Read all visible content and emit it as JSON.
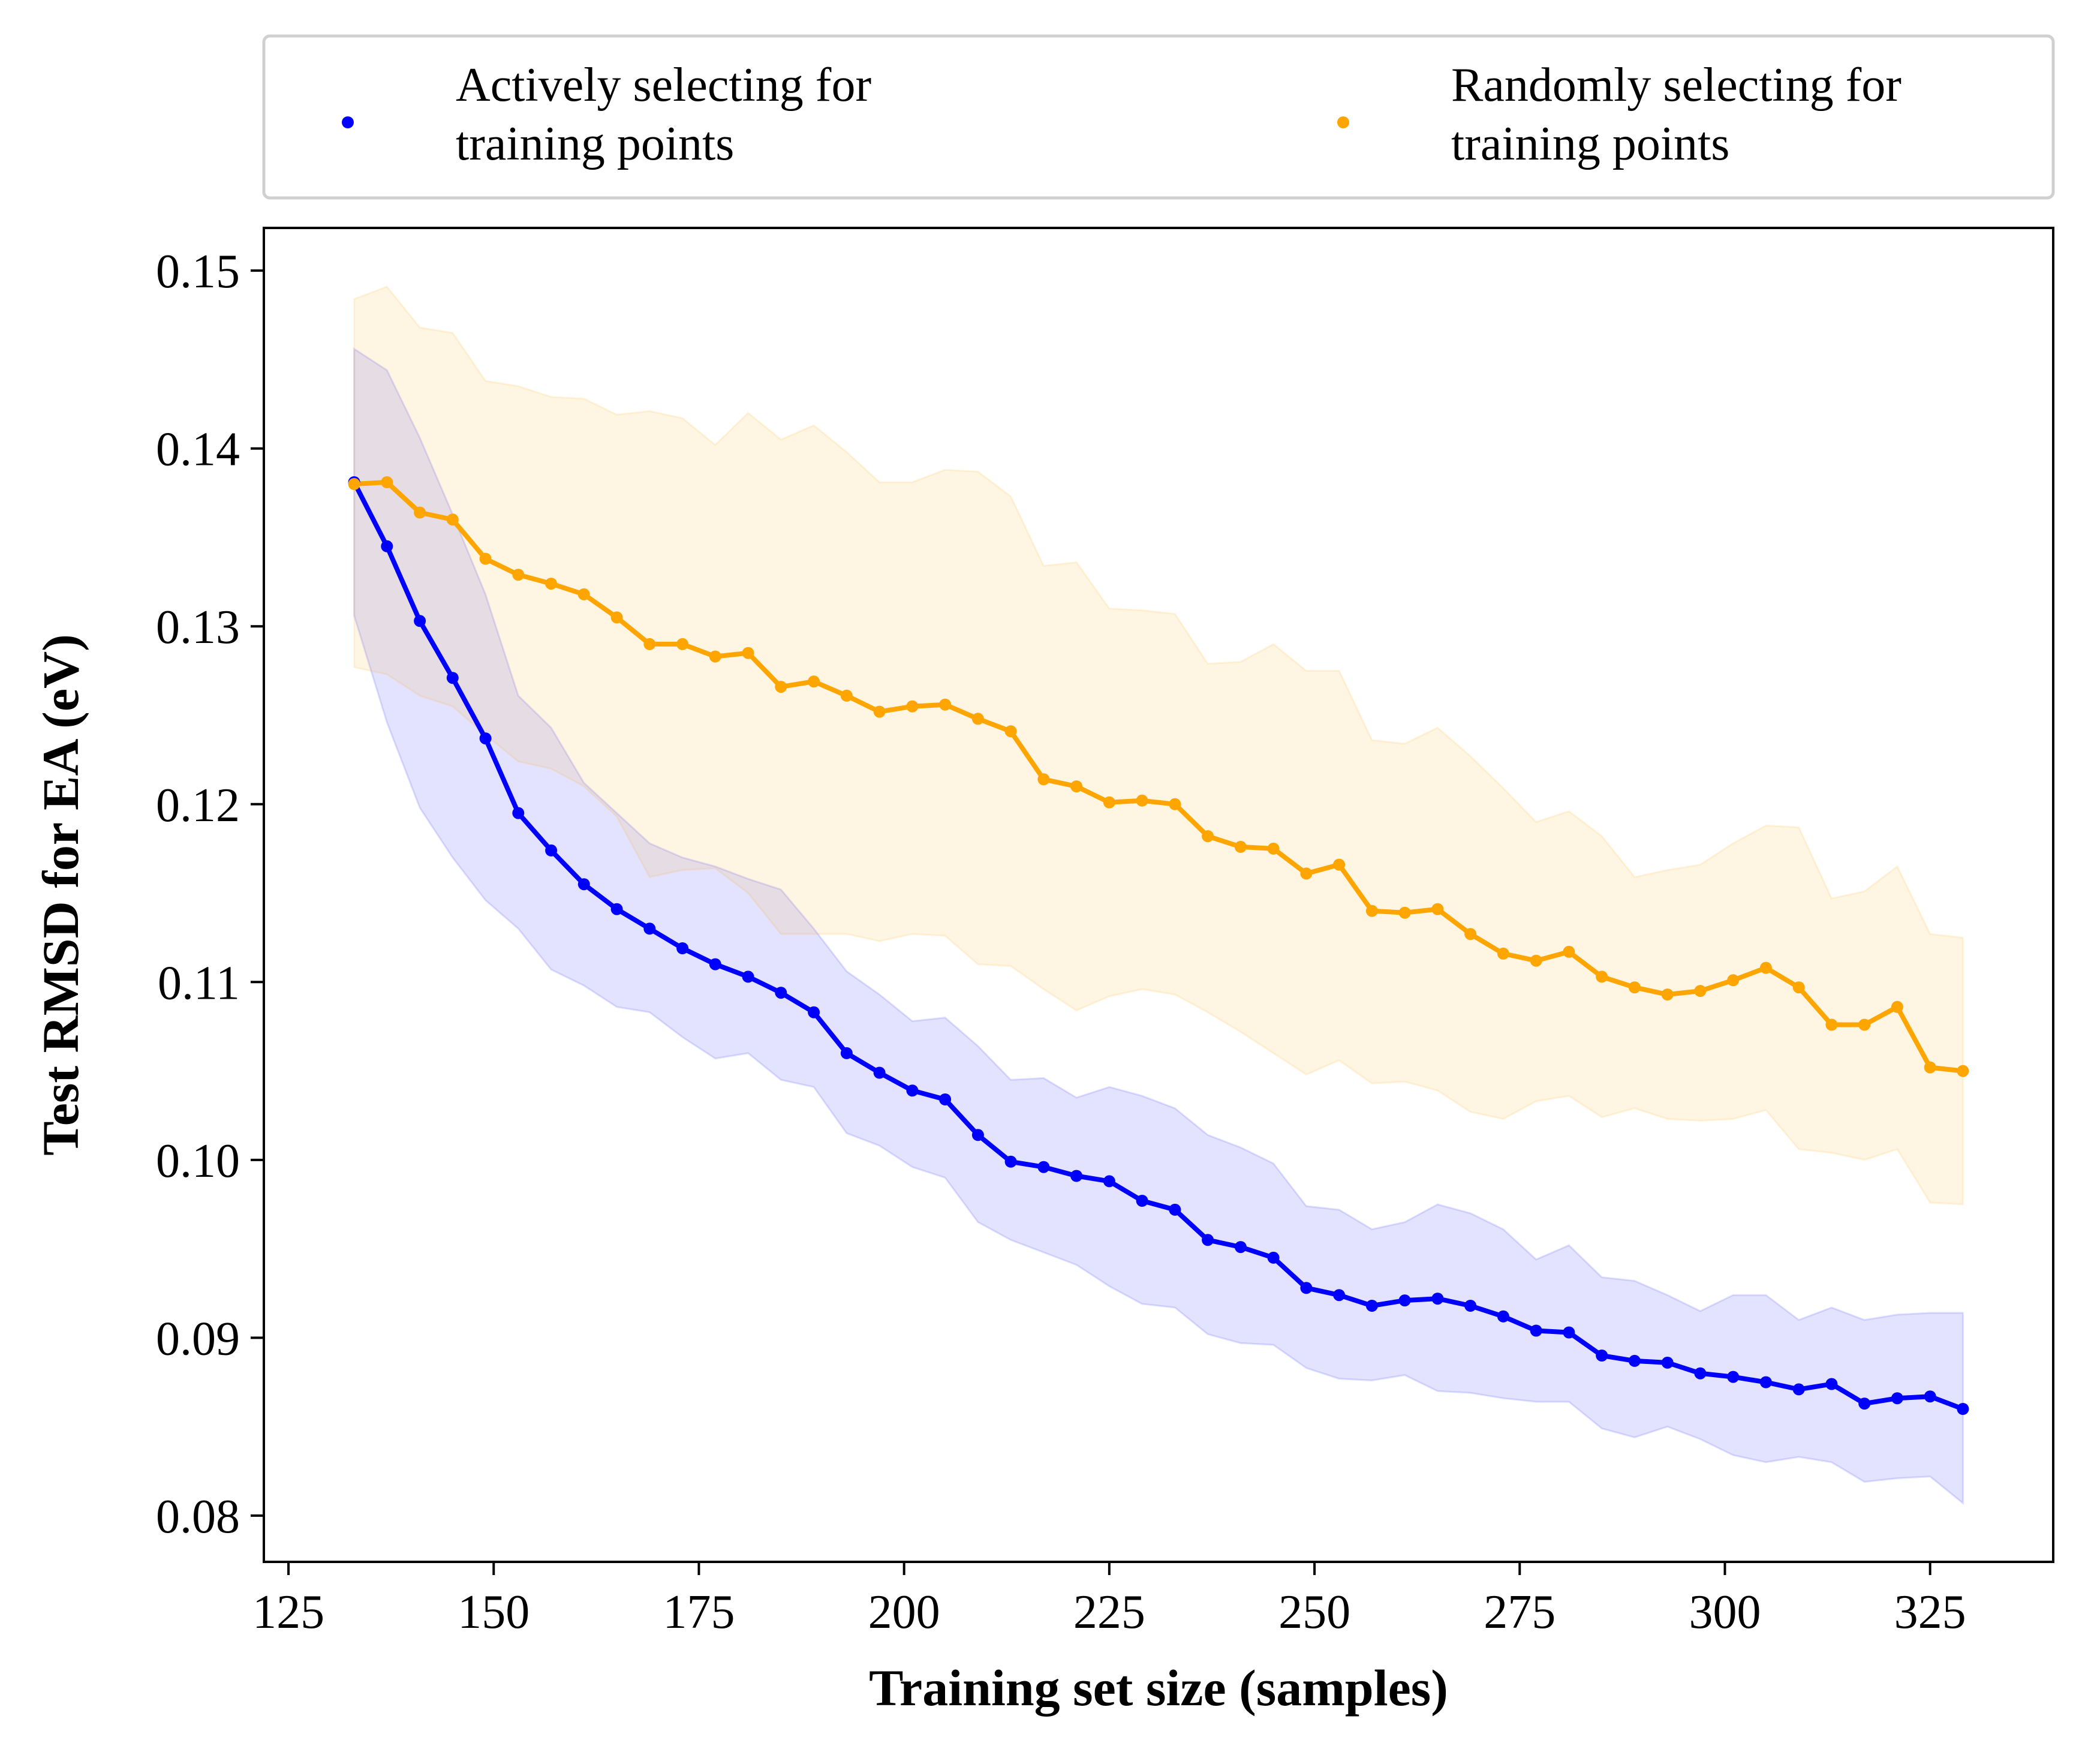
{
  "chart_data": {
    "type": "line",
    "xlabel": "Training set size (samples)",
    "ylabel": "Test RMSD for EA (eV)",
    "xlim": [
      122,
      340
    ],
    "ylim": [
      0.0774,
      0.1524
    ],
    "xticks": [
      125,
      150,
      175,
      200,
      225,
      250,
      275,
      300,
      325
    ],
    "xtick_labels": [
      "125",
      "150",
      "175",
      "200",
      "225",
      "250",
      "275",
      "300",
      "325"
    ],
    "yticks": [
      0.08,
      0.09,
      0.1,
      0.11,
      0.12,
      0.13,
      0.14,
      0.15
    ],
    "ytick_labels": [
      "0.08",
      "0.09",
      "0.10",
      "0.11",
      "0.12",
      "0.13",
      "0.14",
      "0.15"
    ],
    "grid": false,
    "legend_position": "top, outside plot, 2 columns",
    "x": [
      133,
      137,
      141,
      145,
      149,
      153,
      157,
      161,
      165,
      169,
      173,
      177,
      181,
      185,
      189,
      193,
      197,
      201,
      205,
      209,
      213,
      217,
      221,
      225,
      229,
      233,
      237,
      241,
      245,
      249,
      253,
      257,
      261,
      265,
      269,
      273,
      277,
      281,
      285,
      289,
      293,
      297,
      301,
      305,
      309,
      313,
      317,
      321,
      325,
      329
    ],
    "series": [
      {
        "name": "Actively selecting for training points",
        "legend_lines": [
          "Actively selecting for",
          "training points"
        ],
        "color": "#0000ff",
        "band_color": "#0000ff",
        "values": [
          0.1381,
          0.1345,
          0.1303,
          0.1271,
          0.1237,
          0.1195,
          0.1174,
          0.1155,
          0.1141,
          0.113,
          0.1119,
          0.111,
          0.1103,
          0.1094,
          0.1083,
          0.106,
          0.1049,
          0.1039,
          0.1034,
          0.1014,
          0.0999,
          0.0996,
          0.0991,
          0.0988,
          0.0977,
          0.0972,
          0.0955,
          0.0951,
          0.0945,
          0.0928,
          0.0924,
          0.0918,
          0.0921,
          0.0922,
          0.0918,
          0.0912,
          0.0904,
          0.0903,
          0.089,
          0.0887,
          0.0886,
          0.088,
          0.0878,
          0.0875,
          0.0871,
          0.0874,
          0.0863,
          0.0866,
          0.0867,
          0.086
        ],
        "upper": [
          0.1456,
          0.1444,
          0.1406,
          0.1363,
          0.1318,
          0.1261,
          0.1243,
          0.1212,
          0.1195,
          0.1178,
          0.117,
          0.1165,
          0.1158,
          0.1152,
          0.113,
          0.1106,
          0.1093,
          0.1078,
          0.108,
          0.1064,
          0.1045,
          0.1046,
          0.1035,
          0.1041,
          0.1036,
          0.1029,
          0.1014,
          0.1007,
          0.0998,
          0.0974,
          0.0972,
          0.0961,
          0.0965,
          0.0975,
          0.097,
          0.0961,
          0.0944,
          0.0952,
          0.0934,
          0.0932,
          0.0924,
          0.0915,
          0.0924,
          0.0924,
          0.091,
          0.0917,
          0.091,
          0.0913,
          0.0914,
          0.0914
        ],
        "lower": [
          0.1306,
          0.1246,
          0.1198,
          0.117,
          0.1146,
          0.113,
          0.1107,
          0.1098,
          0.1086,
          0.1083,
          0.1069,
          0.1057,
          0.106,
          0.1045,
          0.1041,
          0.1015,
          0.1008,
          0.0996,
          0.099,
          0.0965,
          0.0955,
          0.0948,
          0.0941,
          0.0929,
          0.0919,
          0.0917,
          0.0902,
          0.0897,
          0.0896,
          0.0883,
          0.0877,
          0.0876,
          0.0879,
          0.087,
          0.0869,
          0.0866,
          0.0864,
          0.0864,
          0.0849,
          0.0844,
          0.085,
          0.0843,
          0.0834,
          0.083,
          0.0833,
          0.083,
          0.0819,
          0.0821,
          0.0822,
          0.0807
        ]
      },
      {
        "name": "Randomly selecting for training points",
        "legend_lines": [
          "Randomly selecting for",
          "training points"
        ],
        "color": "#ffa500",
        "band_color": "#ffa500",
        "values": [
          0.138,
          0.1381,
          0.1364,
          0.136,
          0.1338,
          0.1329,
          0.1324,
          0.1318,
          0.1305,
          0.129,
          0.129,
          0.1283,
          0.1285,
          0.1266,
          0.1269,
          0.1261,
          0.1252,
          0.1255,
          0.1256,
          0.1248,
          0.1241,
          0.1214,
          0.121,
          0.1201,
          0.1202,
          0.12,
          0.1182,
          0.1176,
          0.1175,
          0.1161,
          0.1166,
          0.114,
          0.1139,
          0.1141,
          0.1127,
          0.1116,
          0.1112,
          0.1117,
          0.1103,
          0.1097,
          0.1093,
          0.1095,
          0.1101,
          0.1108,
          0.1097,
          0.1076,
          0.1076,
          0.1086,
          0.1052,
          0.105
        ],
        "upper": [
          0.1484,
          0.1491,
          0.1468,
          0.1465,
          0.1438,
          0.1435,
          0.1429,
          0.1428,
          0.1419,
          0.1421,
          0.1417,
          0.1402,
          0.142,
          0.1405,
          0.1413,
          0.1398,
          0.1381,
          0.1381,
          0.1388,
          0.1387,
          0.1373,
          0.1334,
          0.1336,
          0.131,
          0.1309,
          0.1307,
          0.1279,
          0.128,
          0.129,
          0.1275,
          0.1275,
          0.1236,
          0.1234,
          0.1243,
          0.1227,
          0.1209,
          0.119,
          0.1196,
          0.1182,
          0.1159,
          0.1163,
          0.1166,
          0.1178,
          0.1188,
          0.1187,
          0.1147,
          0.1151,
          0.1165,
          0.1127,
          0.1125
        ],
        "lower": [
          0.1277,
          0.1273,
          0.1261,
          0.1255,
          0.1239,
          0.1224,
          0.122,
          0.121,
          0.1193,
          0.1159,
          0.1163,
          0.1164,
          0.115,
          0.1127,
          0.1127,
          0.1127,
          0.1123,
          0.1127,
          0.1126,
          0.111,
          0.1109,
          0.1096,
          0.1084,
          0.1092,
          0.1096,
          0.1093,
          0.1083,
          0.1072,
          0.106,
          0.1048,
          0.1056,
          0.1043,
          0.1044,
          0.1039,
          0.1027,
          0.1023,
          0.1033,
          0.1036,
          0.1024,
          0.1029,
          0.1023,
          0.1022,
          0.1023,
          0.1028,
          0.1006,
          0.1004,
          0.1,
          0.1006,
          0.0976,
          0.0975
        ]
      }
    ]
  }
}
